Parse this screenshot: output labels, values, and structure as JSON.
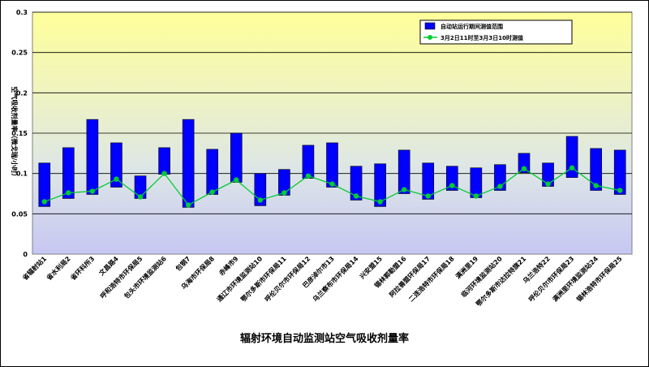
{
  "chart_data": {
    "type": "bar",
    "title": "辐射环境自动监测站空气吸收剂量率",
    "ylabel": "空气吸收剂量率（微戈瑞/小时）",
    "xlabel": "",
    "ylim": [
      0,
      0.3
    ],
    "yticks": [
      "0",
      "0.05",
      "0.1",
      "0.15",
      "0.2",
      "0.25",
      "0.3"
    ],
    "grid": true,
    "legend_position": "top-right",
    "categories": [
      "省辐射站1",
      "省水利局2",
      "省环科所3",
      "文昌路4",
      "呼和浩特市环保局5",
      "包头市环境监测站6",
      "包钢7",
      "乌海市环保局8",
      "赤峰市9",
      "通辽市环境监测站10",
      "鄂尔多斯市环保局11",
      "呼伦贝尔市环保局12",
      "巴彦淖尔市13",
      "乌兰察布市环保局14",
      "兴安盟15",
      "锡林郭勒盟16",
      "阿拉善盟环保局17",
      "二连浩特市环保局18",
      "满洲里19",
      "临河环境监测站20",
      "鄂尔多斯市达拉特旗21",
      "乌兰浩特22",
      "呼伦贝尔市环保局23",
      "满洲里环境监测站24",
      "锡林浩特市环保局25"
    ],
    "series": [
      {
        "name": "自动站运行期间测值范围",
        "kind": "floating-bar",
        "color": "#0000ff",
        "low": [
          0.059,
          0.069,
          0.074,
          0.083,
          0.069,
          0.099,
          0.058,
          0.074,
          0.089,
          0.06,
          0.073,
          0.094,
          0.083,
          0.067,
          0.059,
          0.075,
          0.068,
          0.079,
          0.07,
          0.079,
          0.101,
          0.084,
          0.095,
          0.079,
          0.074
        ],
        "high": [
          0.113,
          0.132,
          0.167,
          0.138,
          0.097,
          0.132,
          0.167,
          0.13,
          0.15,
          0.1,
          0.105,
          0.135,
          0.138,
          0.109,
          0.112,
          0.129,
          0.113,
          0.109,
          0.107,
          0.111,
          0.125,
          0.113,
          0.146,
          0.131,
          0.129
        ]
      },
      {
        "name": "3月2日11时至3月3日10时测值",
        "kind": "line",
        "color": "#00cc33",
        "values": [
          0.065,
          0.076,
          0.078,
          0.093,
          0.071,
          0.1,
          0.061,
          0.077,
          0.092,
          0.067,
          0.076,
          0.097,
          0.087,
          0.072,
          0.065,
          0.08,
          0.072,
          0.085,
          0.072,
          0.084,
          0.106,
          0.087,
          0.107,
          0.085,
          0.079
        ]
      }
    ],
    "background_bands": [
      "#ffff99",
      "#eff5c4",
      "#dfe8e9",
      "#cfd8f5",
      "#c4c8f0",
      "#c6c6f4"
    ]
  }
}
